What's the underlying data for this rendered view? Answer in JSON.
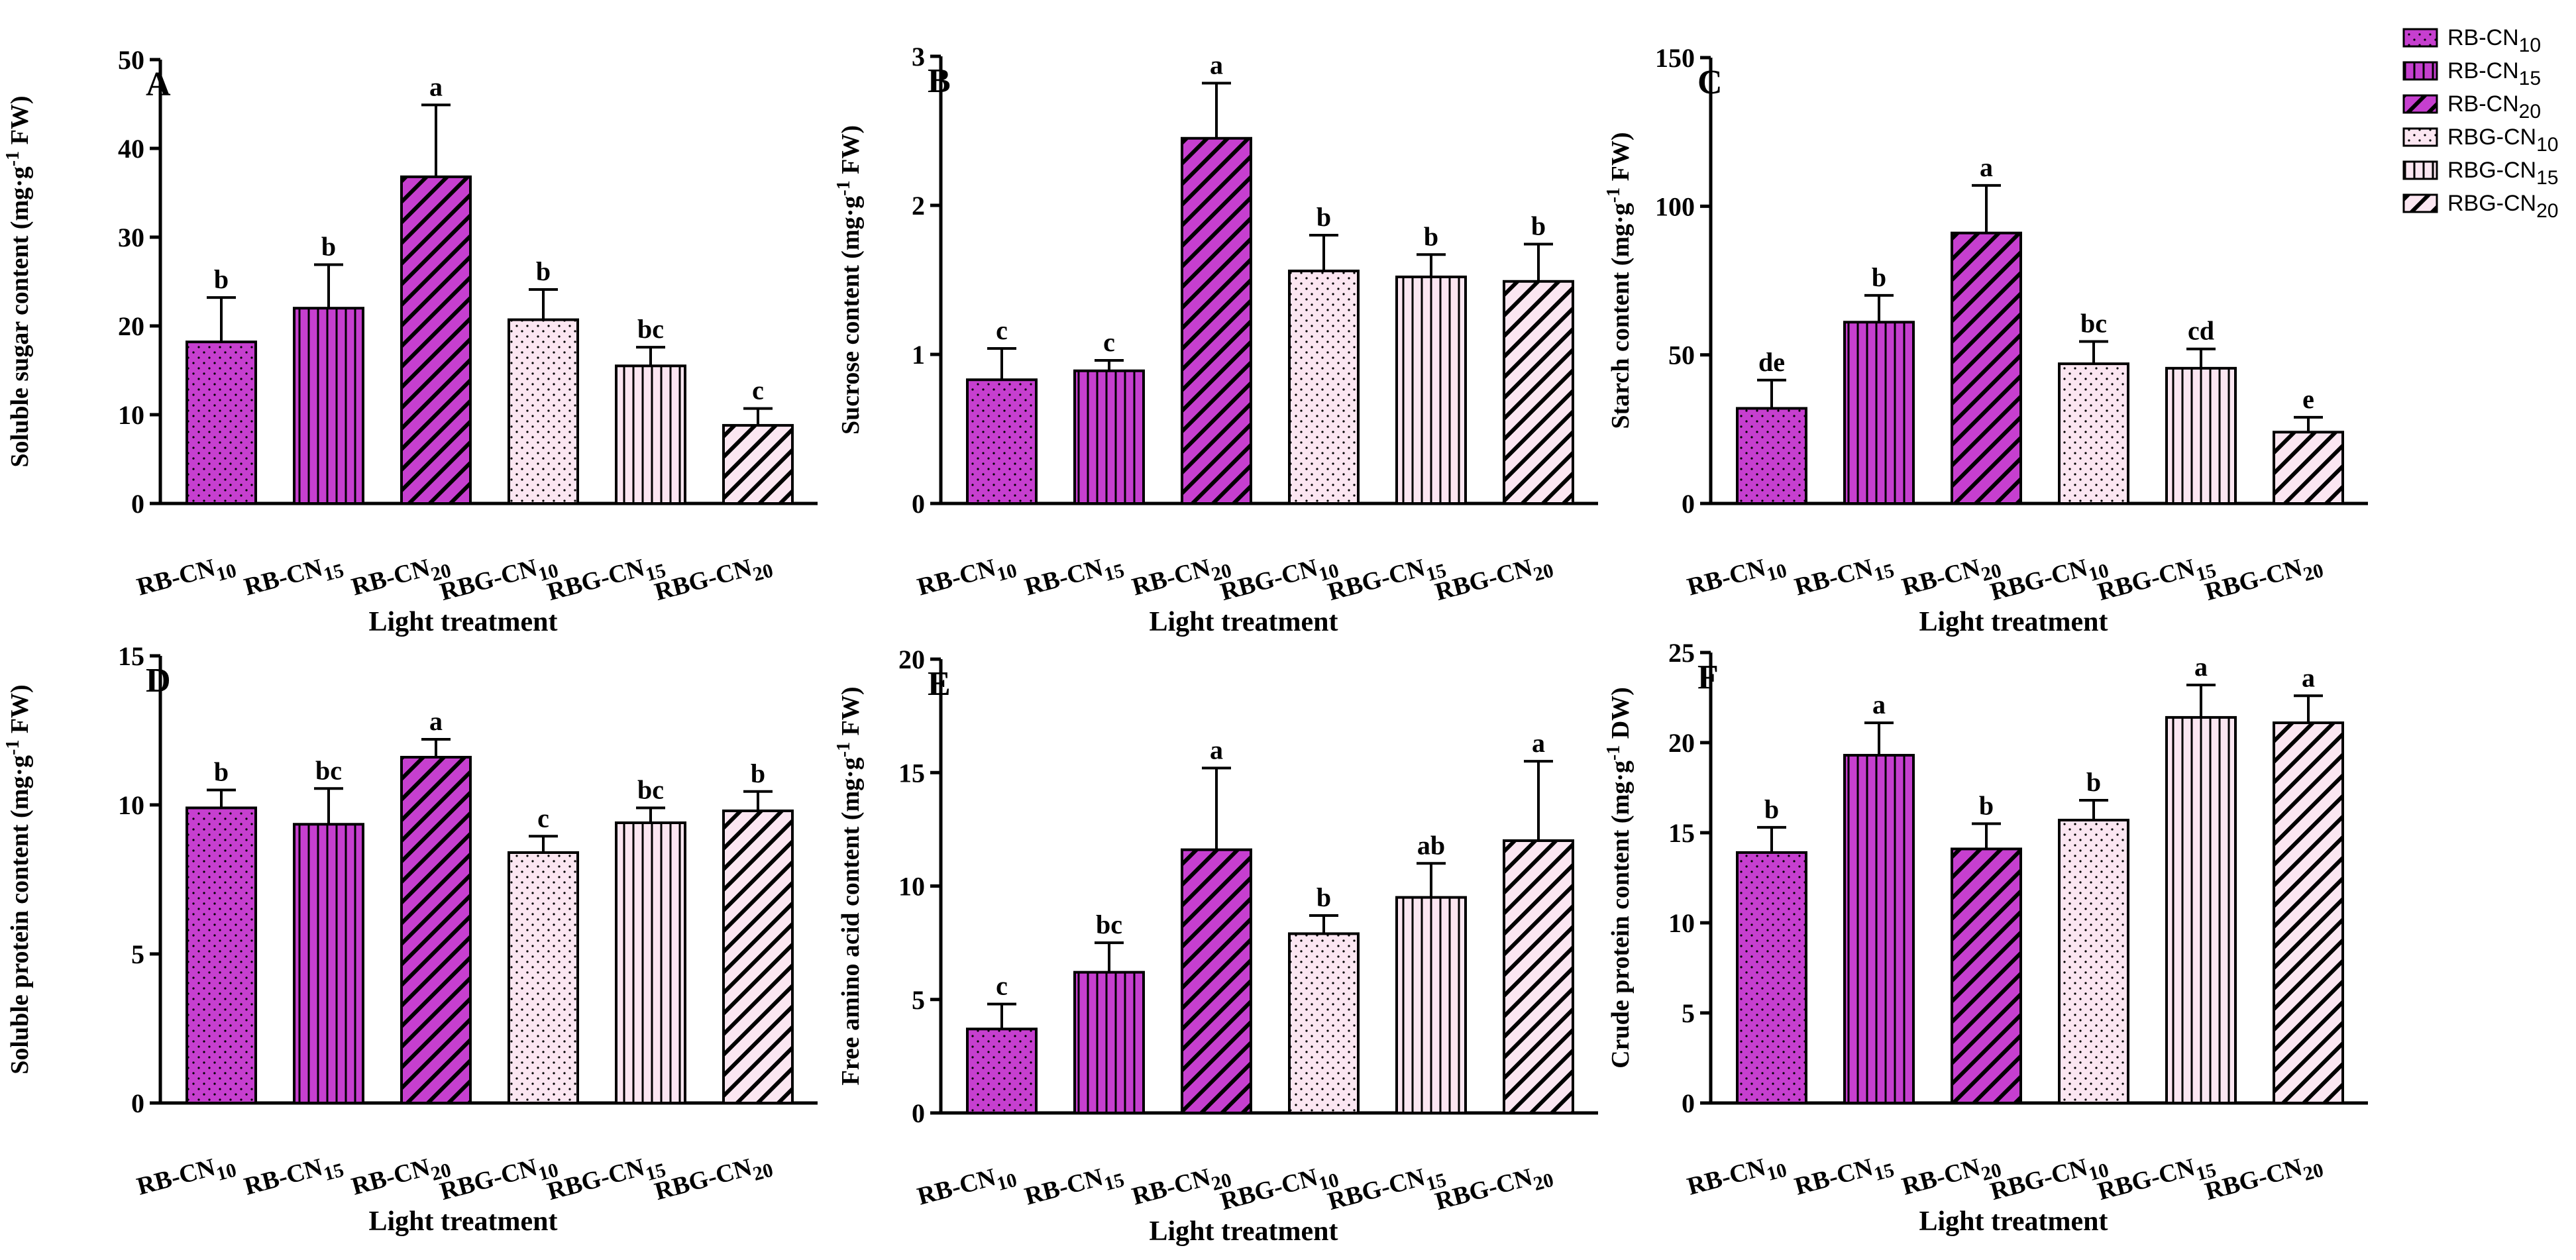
{
  "colors": {
    "rb": "#c63fcf",
    "rbg": "#fbe6f1",
    "stroke": "#000000"
  },
  "legend": [
    {
      "base": "RB-CN",
      "sub": "10",
      "pattern": "dots",
      "fill": "rb"
    },
    {
      "base": "RB-CN",
      "sub": "15",
      "pattern": "vlines",
      "fill": "rb"
    },
    {
      "base": "RB-CN",
      "sub": "20",
      "pattern": "diag",
      "fill": "rb"
    },
    {
      "base": "RBG-CN",
      "sub": "10",
      "pattern": "dots",
      "fill": "rbg"
    },
    {
      "base": "RBG-CN",
      "sub": "15",
      "pattern": "vlines",
      "fill": "rbg"
    },
    {
      "base": "RBG-CN",
      "sub": "20",
      "pattern": "diag",
      "fill": "rbg"
    }
  ],
  "chart_data": [
    {
      "type": "bar",
      "panel": "A",
      "ylabel_pre": "Soluble sugar content (mg·g",
      "ylabel_sup": "-1",
      "ylabel_post": " FW)",
      "xlabel": "Light treatment",
      "ylim": [
        0,
        50
      ],
      "yticks": [
        0,
        10,
        20,
        30,
        40,
        50
      ],
      "categories": [
        {
          "base": "RB-CN",
          "sub": "10",
          "pattern": "dots",
          "fill": "rb"
        },
        {
          "base": "RB-CN",
          "sub": "15",
          "pattern": "vlines",
          "fill": "rb"
        },
        {
          "base": "RB-CN",
          "sub": "20",
          "pattern": "diag",
          "fill": "rb"
        },
        {
          "base": "RBG-CN",
          "sub": "10",
          "pattern": "dots",
          "fill": "rbg"
        },
        {
          "base": "RBG-CN",
          "sub": "15",
          "pattern": "vlines",
          "fill": "rbg"
        },
        {
          "base": "RBG-CN",
          "sub": "20",
          "pattern": "diag",
          "fill": "rbg"
        }
      ],
      "values": [
        18.2,
        22.0,
        36.8,
        20.7,
        15.5,
        8.8
      ],
      "errors": [
        5.0,
        4.9,
        8.1,
        3.4,
        2.1,
        1.9
      ],
      "letters": [
        "b",
        "b",
        "a",
        "b",
        "bc",
        "c"
      ]
    },
    {
      "type": "bar",
      "panel": "B",
      "ylabel_pre": "Sucrose content (mg·g",
      "ylabel_sup": "-1",
      "ylabel_post": " FW)",
      "xlabel": "Light treatment",
      "ylim": [
        0,
        3
      ],
      "yticks": [
        0,
        1,
        2,
        3
      ],
      "categories": [
        {
          "base": "RB-CN",
          "sub": "10",
          "pattern": "dots",
          "fill": "rb"
        },
        {
          "base": "RB-CN",
          "sub": "15",
          "pattern": "vlines",
          "fill": "rb"
        },
        {
          "base": "RB-CN",
          "sub": "20",
          "pattern": "diag",
          "fill": "rb"
        },
        {
          "base": "RBG-CN",
          "sub": "10",
          "pattern": "dots",
          "fill": "rbg"
        },
        {
          "base": "RBG-CN",
          "sub": "15",
          "pattern": "vlines",
          "fill": "rbg"
        },
        {
          "base": "RBG-CN",
          "sub": "20",
          "pattern": "diag",
          "fill": "rbg"
        }
      ],
      "values": [
        0.83,
        0.89,
        2.45,
        1.56,
        1.52,
        1.49
      ],
      "errors": [
        0.21,
        0.07,
        0.37,
        0.24,
        0.15,
        0.25
      ],
      "letters": [
        "c",
        "c",
        "a",
        "b",
        "b",
        "b"
      ]
    },
    {
      "type": "bar",
      "panel": "C",
      "ylabel_pre": "Starch content (mg·g",
      "ylabel_sup": "-1",
      "ylabel_post": " FW)",
      "xlabel": "Light treatment",
      "ylim": [
        0,
        150
      ],
      "yticks": [
        0,
        50,
        100,
        150
      ],
      "categories": [
        {
          "base": "RB-CN",
          "sub": "10",
          "pattern": "dots",
          "fill": "rb"
        },
        {
          "base": "RB-CN",
          "sub": "15",
          "pattern": "vlines",
          "fill": "rb"
        },
        {
          "base": "RB-CN",
          "sub": "20",
          "pattern": "diag",
          "fill": "rb"
        },
        {
          "base": "RBG-CN",
          "sub": "10",
          "pattern": "dots",
          "fill": "rbg"
        },
        {
          "base": "RBG-CN",
          "sub": "15",
          "pattern": "vlines",
          "fill": "rbg"
        },
        {
          "base": "RBG-CN",
          "sub": "20",
          "pattern": "diag",
          "fill": "rbg"
        }
      ],
      "values": [
        32,
        61,
        91,
        47,
        45.5,
        24
      ],
      "errors": [
        9.5,
        9,
        16,
        7.5,
        6.5,
        5
      ],
      "letters": [
        "de",
        "b",
        "a",
        "bc",
        "cd",
        "e"
      ]
    },
    {
      "type": "bar",
      "panel": "D",
      "ylabel_pre": "Soluble protein content (mg·g",
      "ylabel_sup": "-1",
      "ylabel_post": " FW)",
      "xlabel": "Light treatment",
      "ylim": [
        0,
        15
      ],
      "yticks": [
        0,
        5,
        10,
        15
      ],
      "categories": [
        {
          "base": "RB-CN",
          "sub": "10",
          "pattern": "dots",
          "fill": "rb"
        },
        {
          "base": "RB-CN",
          "sub": "15",
          "pattern": "vlines",
          "fill": "rb"
        },
        {
          "base": "RB-CN",
          "sub": "20",
          "pattern": "diag",
          "fill": "rb"
        },
        {
          "base": "RBG-CN",
          "sub": "10",
          "pattern": "dots",
          "fill": "rbg"
        },
        {
          "base": "RBG-CN",
          "sub": "15",
          "pattern": "vlines",
          "fill": "rbg"
        },
        {
          "base": "RBG-CN",
          "sub": "20",
          "pattern": "diag",
          "fill": "rbg"
        }
      ],
      "values": [
        9.9,
        9.35,
        11.6,
        8.4,
        9.4,
        9.8
      ],
      "errors": [
        0.6,
        1.2,
        0.6,
        0.55,
        0.5,
        0.65
      ],
      "letters": [
        "b",
        "bc",
        "a",
        "c",
        "bc",
        "b"
      ]
    },
    {
      "type": "bar",
      "panel": "E",
      "ylabel_pre": "Free amino acid content (mg·g",
      "ylabel_sup": "-1",
      "ylabel_post": " FW)",
      "xlabel": "Light treatment",
      "ylim": [
        0,
        20
      ],
      "yticks": [
        0,
        5,
        10,
        15,
        20
      ],
      "categories": [
        {
          "base": "RB-CN",
          "sub": "10",
          "pattern": "dots",
          "fill": "rb"
        },
        {
          "base": "RB-CN",
          "sub": "15",
          "pattern": "vlines",
          "fill": "rb"
        },
        {
          "base": "RB-CN",
          "sub": "20",
          "pattern": "diag",
          "fill": "rb"
        },
        {
          "base": "RBG-CN",
          "sub": "10",
          "pattern": "dots",
          "fill": "rbg"
        },
        {
          "base": "RBG-CN",
          "sub": "15",
          "pattern": "vlines",
          "fill": "rbg"
        },
        {
          "base": "RBG-CN",
          "sub": "20",
          "pattern": "diag",
          "fill": "rbg"
        }
      ],
      "values": [
        3.7,
        6.2,
        11.6,
        7.9,
        9.5,
        12.0
      ],
      "errors": [
        1.1,
        1.3,
        3.6,
        0.8,
        1.5,
        3.5
      ],
      "letters": [
        "c",
        "bc",
        "a",
        "b",
        "ab",
        "a"
      ]
    },
    {
      "type": "bar",
      "panel": "F",
      "ylabel_pre": "Crude protein content (mg·g",
      "ylabel_sup": "-1",
      "ylabel_post": " DW)",
      "xlabel": "Light treatment",
      "ylim": [
        0,
        25
      ],
      "yticks": [
        0,
        5,
        10,
        15,
        20,
        25
      ],
      "categories": [
        {
          "base": "RB-CN",
          "sub": "10",
          "pattern": "dots",
          "fill": "rb"
        },
        {
          "base": "RB-CN",
          "sub": "15",
          "pattern": "vlines",
          "fill": "rb"
        },
        {
          "base": "RB-CN",
          "sub": "20",
          "pattern": "diag",
          "fill": "rb"
        },
        {
          "base": "RBG-CN",
          "sub": "10",
          "pattern": "dots",
          "fill": "rbg"
        },
        {
          "base": "RBG-CN",
          "sub": "15",
          "pattern": "vlines",
          "fill": "rbg"
        },
        {
          "base": "RBG-CN",
          "sub": "20",
          "pattern": "diag",
          "fill": "rbg"
        }
      ],
      "values": [
        13.9,
        19.3,
        14.1,
        15.7,
        21.4,
        21.1
      ],
      "errors": [
        1.4,
        1.8,
        1.4,
        1.1,
        1.8,
        1.5
      ],
      "letters": [
        "b",
        "a",
        "b",
        "b",
        "a",
        "a"
      ]
    }
  ]
}
